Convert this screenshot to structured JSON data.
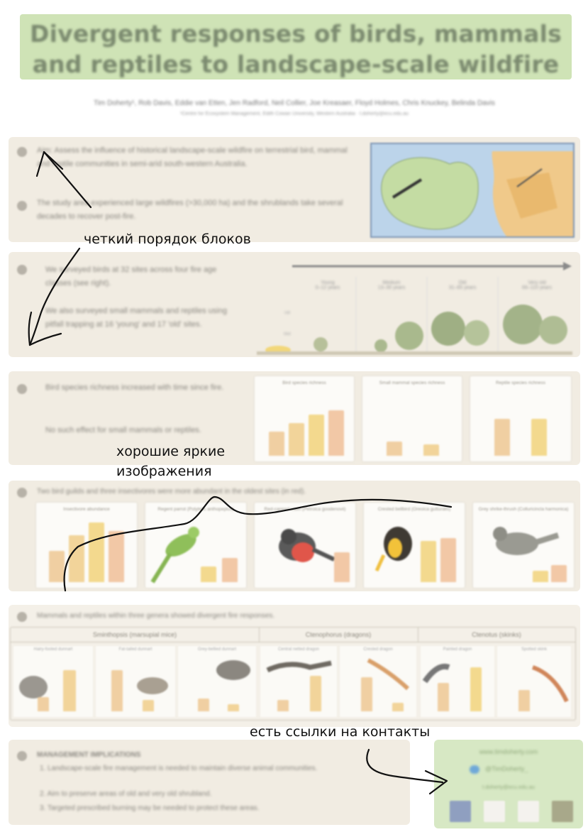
{
  "poster": {
    "title": "Divergent responses of birds, mammals and reptiles to landscape-scale wildfire",
    "authors": "Tim Doherty¹, Rob Davis, Eddie van Etten, Jen Radford, Neil Collier, Joe Kreasaer, Floyd Holmes, Chris Knuckey, Belinda Davis",
    "affiliation": "¹Centre for Ecosystem Management, Edith Cowan University, Western Australia · t.doherty@ecu.edu.au",
    "sections": [
      {
        "bullets": [
          "Aim: Assess the influence of historical landscape-scale wildfire on terrestrial bird, mammal and reptile communities in semi-arid south-western Australia.",
          "The study area experienced large wildfires (>30,000 ha) and the shrublands take several decades to recover post-fire."
        ]
      },
      {
        "bullets": [
          "We surveyed birds at 32 sites across four fire age classes (see right).",
          "We also surveyed small mammals and reptiles using pitfall trapping at 16 'young' and 17 'old' sites."
        ],
        "stages": [
          "Young\n0–12 years",
          "Medium\n13–30 years",
          "Old\n31–65 years",
          "Very old\n66–110 years"
        ],
        "axis": [
          "Tall",
          "Mid"
        ]
      },
      {
        "bullets": [
          "Bird species richness increased with time since fire.",
          "No such effect for small mammals or reptiles."
        ],
        "charts": [
          "Bird species richness",
          "Small mammal species richness",
          "Reptile species richness"
        ]
      },
      {
        "heading": "Two bird guilds and three insectivores were more abundant in the oldest sites (in red).",
        "charts": [
          "Insectivore abundance",
          "Regent parrot (Polytelis anthopeplus)",
          "Red-capped robin (Petroica goodenovii)",
          "Crested bellbird (Oreoica gutturalis)",
          "Grey shrike-thrush (Colluricincla harmonica)"
        ]
      },
      {
        "heading": "Mammals and reptiles within three genera showed divergent fire responses.",
        "genera": [
          "Sminthopsis (marsupial mice)",
          "Ctenophorus (dragons)",
          "Ctenotus (skinks)"
        ],
        "cells": [
          "Hairy-footed dunnart",
          "Fat-tailed dunnart",
          "Grey-bellied dunnart",
          "Central netted dragon",
          "Crested dragon",
          "Painted dragon",
          "Spotted skink"
        ]
      },
      {
        "heading": "MANAGEMENT IMPLICATIONS",
        "items": [
          "1. Landscape-scale fire management is needed to maintain diverse animal communities.",
          "2. Aim to preserve areas of old and very old shrubland.",
          "3. Targeted prescribed burning may be needed to protect these areas."
        ]
      }
    ],
    "contact": {
      "website": "www.timdoherty.com",
      "twitter": "@TimDoherty_",
      "email": "t.doherty@ecu.edu.au"
    }
  },
  "annotations": {
    "order": "четкий порядок блоков",
    "images_line1": "хорошие яркие",
    "images_line2": "изображения",
    "contacts": "есть ссылки на контакты"
  }
}
